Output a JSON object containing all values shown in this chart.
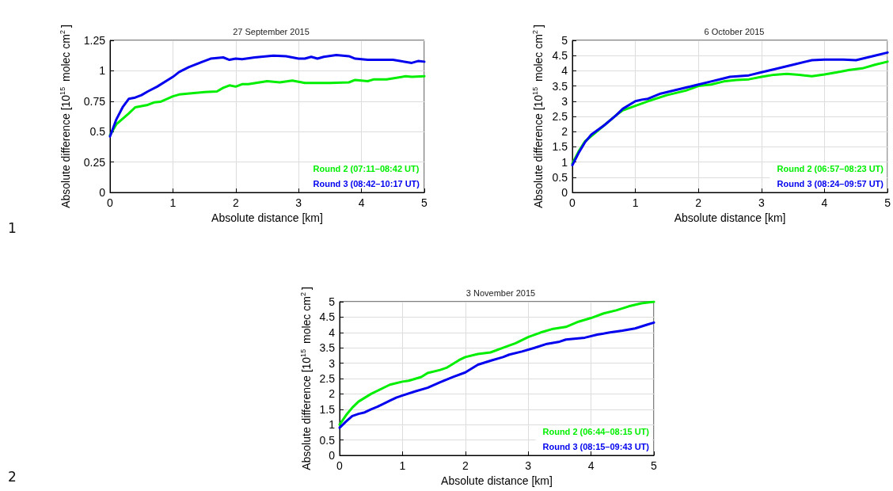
{
  "chart_data": [
    {
      "type": "line",
      "title": "27 September 2015",
      "xlabel": "Absolute distance [km]",
      "ylabel": "Absolute difference [10$^{15}$ molec cm$^{2}$]",
      "xlim": [
        0,
        5
      ],
      "xticks": [
        0,
        1,
        2,
        3,
        4,
        5
      ],
      "ylim": [
        0,
        1.25
      ],
      "yticks": [
        0,
        0.25,
        0.5,
        0.75,
        1,
        1.25
      ],
      "grid": true,
      "legend": "bottom right",
      "marker": "none",
      "line_style": "solid",
      "annotations": [
        "1"
      ],
      "series": [
        {
          "name": "Round 2 (07:11–08:42 UT)",
          "color": "#00ee00",
          "x": [
            0,
            0.1,
            0.3,
            0.4,
            0.6,
            0.7,
            0.8,
            1.0,
            1.1,
            1.3,
            1.5,
            1.7,
            1.8,
            1.9,
            2.0,
            2.1,
            2.2,
            2.5,
            2.7,
            2.9,
            3.1,
            3.3,
            3.5,
            3.8,
            3.9,
            4.1,
            4.2,
            4.4,
            4.7,
            4.8,
            5.0
          ],
          "values": [
            0.47,
            0.56,
            0.65,
            0.7,
            0.72,
            0.74,
            0.745,
            0.79,
            0.805,
            0.815,
            0.825,
            0.83,
            0.86,
            0.88,
            0.87,
            0.89,
            0.89,
            0.915,
            0.905,
            0.92,
            0.9,
            0.9,
            0.9,
            0.905,
            0.925,
            0.915,
            0.93,
            0.93,
            0.955,
            0.95,
            0.955
          ]
        },
        {
          "name": "Round 3 (08:42–10:17 UT)",
          "color": "#0000ee",
          "x": [
            0,
            0.1,
            0.2,
            0.3,
            0.4,
            0.5,
            0.6,
            0.75,
            1.0,
            1.1,
            1.25,
            1.5,
            1.6,
            1.8,
            1.9,
            2.0,
            2.1,
            2.3,
            2.6,
            2.8,
            3.0,
            3.1,
            3.2,
            3.3,
            3.4,
            3.6,
            3.8,
            3.9,
            4.1,
            4.5,
            4.8,
            4.9,
            5.0
          ],
          "values": [
            0.46,
            0.6,
            0.7,
            0.77,
            0.78,
            0.8,
            0.83,
            0.87,
            0.95,
            0.99,
            1.03,
            1.08,
            1.1,
            1.11,
            1.09,
            1.1,
            1.095,
            1.11,
            1.125,
            1.12,
            1.1,
            1.1,
            1.115,
            1.1,
            1.115,
            1.13,
            1.12,
            1.1,
            1.09,
            1.09,
            1.065,
            1.08,
            1.075
          ]
        }
      ]
    },
    {
      "type": "line",
      "title": "6 October 2015",
      "xlabel": "Absolute distance [km]",
      "ylabel": "Absolute difference [10$^{15}$ molec cm$^{2}$]",
      "xlim": [
        0,
        5
      ],
      "xticks": [
        0,
        1,
        2,
        3,
        4,
        5
      ],
      "ylim": [
        0,
        5
      ],
      "yticks": [
        0,
        0.5,
        1,
        1.5,
        2,
        2.5,
        3,
        3.5,
        4,
        4.5,
        5
      ],
      "grid": true,
      "legend": "bottom right",
      "marker": "none",
      "line_style": "solid",
      "series": [
        {
          "name": "Round 2 (06:57–08:23 UT)",
          "color": "#00ee00",
          "x": [
            0,
            0.1,
            0.2,
            0.5,
            0.7,
            0.8,
            1.0,
            1.2,
            1.5,
            1.8,
            2.0,
            2.2,
            2.4,
            2.6,
            2.8,
            3.0,
            3.2,
            3.4,
            3.6,
            3.8,
            4.0,
            4.2,
            4.4,
            4.6,
            4.8,
            5.0
          ],
          "values": [
            0.95,
            1.35,
            1.68,
            2.2,
            2.55,
            2.7,
            2.85,
            3.0,
            3.2,
            3.35,
            3.5,
            3.55,
            3.65,
            3.7,
            3.72,
            3.8,
            3.87,
            3.9,
            3.87,
            3.82,
            3.88,
            3.95,
            4.03,
            4.08,
            4.2,
            4.3
          ]
        },
        {
          "name": "Round 3 (08:24–09:57 UT)",
          "color": "#0000ee",
          "x": [
            0,
            0.1,
            0.2,
            0.3,
            0.5,
            0.7,
            0.8,
            1.0,
            1.1,
            1.2,
            1.4,
            1.7,
            2.0,
            2.2,
            2.4,
            2.5,
            2.8,
            3.0,
            3.2,
            3.5,
            3.8,
            4.0,
            4.3,
            4.5,
            4.8,
            5.0
          ],
          "values": [
            0.9,
            1.3,
            1.65,
            1.9,
            2.2,
            2.55,
            2.75,
            3.0,
            3.05,
            3.08,
            3.25,
            3.4,
            3.55,
            3.65,
            3.75,
            3.8,
            3.85,
            3.95,
            4.05,
            4.2,
            4.35,
            4.37,
            4.37,
            4.35,
            4.5,
            4.6
          ]
        }
      ]
    },
    {
      "type": "line",
      "title": "3 November 2015",
      "xlabel": "Absolute distance [km]",
      "ylabel": "Absolute difference [10$^{15}$ molec cm$^{2}$]",
      "xlim": [
        0,
        5
      ],
      "xticks": [
        0,
        1,
        2,
        3,
        4,
        5
      ],
      "ylim": [
        0,
        5
      ],
      "yticks": [
        0,
        0.5,
        1,
        1.5,
        2,
        2.5,
        3,
        3.5,
        4,
        4.5,
        5
      ],
      "grid": true,
      "legend": "bottom right",
      "marker": "none",
      "line_style": "solid",
      "annotations": [
        "2"
      ],
      "series": [
        {
          "name": "Round 2 (06:44–08:15 UT)",
          "color": "#00ee00",
          "x": [
            0,
            0.1,
            0.2,
            0.3,
            0.5,
            0.8,
            1.0,
            1.1,
            1.3,
            1.4,
            1.6,
            1.7,
            1.9,
            2.0,
            2.2,
            2.4,
            2.6,
            2.8,
            3.0,
            3.2,
            3.4,
            3.6,
            3.8,
            4.0,
            4.2,
            4.4,
            4.6,
            4.8,
            5.0
          ],
          "values": [
            1.0,
            1.3,
            1.55,
            1.75,
            2.0,
            2.3,
            2.4,
            2.43,
            2.55,
            2.68,
            2.78,
            2.85,
            3.1,
            3.2,
            3.3,
            3.35,
            3.5,
            3.65,
            3.85,
            4.0,
            4.12,
            4.18,
            4.35,
            4.47,
            4.62,
            4.72,
            4.85,
            4.95,
            5.0
          ]
        },
        {
          "name": "Round 3 (08:15–09:43 UT)",
          "color": "#0000ee",
          "x": [
            0,
            0.1,
            0.2,
            0.3,
            0.4,
            0.5,
            0.6,
            0.8,
            0.9,
            1.0,
            1.2,
            1.4,
            1.6,
            1.8,
            2.0,
            2.2,
            2.4,
            2.6,
            2.7,
            2.9,
            3.1,
            3.3,
            3.5,
            3.6,
            3.9,
            4.1,
            4.3,
            4.5,
            4.7,
            4.9,
            5.0
          ],
          "values": [
            0.9,
            1.1,
            1.28,
            1.35,
            1.4,
            1.5,
            1.58,
            1.78,
            1.88,
            1.95,
            2.08,
            2.2,
            2.38,
            2.55,
            2.7,
            2.95,
            3.08,
            3.2,
            3.28,
            3.38,
            3.5,
            3.63,
            3.7,
            3.77,
            3.83,
            3.93,
            4.0,
            4.06,
            4.13,
            4.26,
            4.32
          ]
        }
      ]
    }
  ]
}
